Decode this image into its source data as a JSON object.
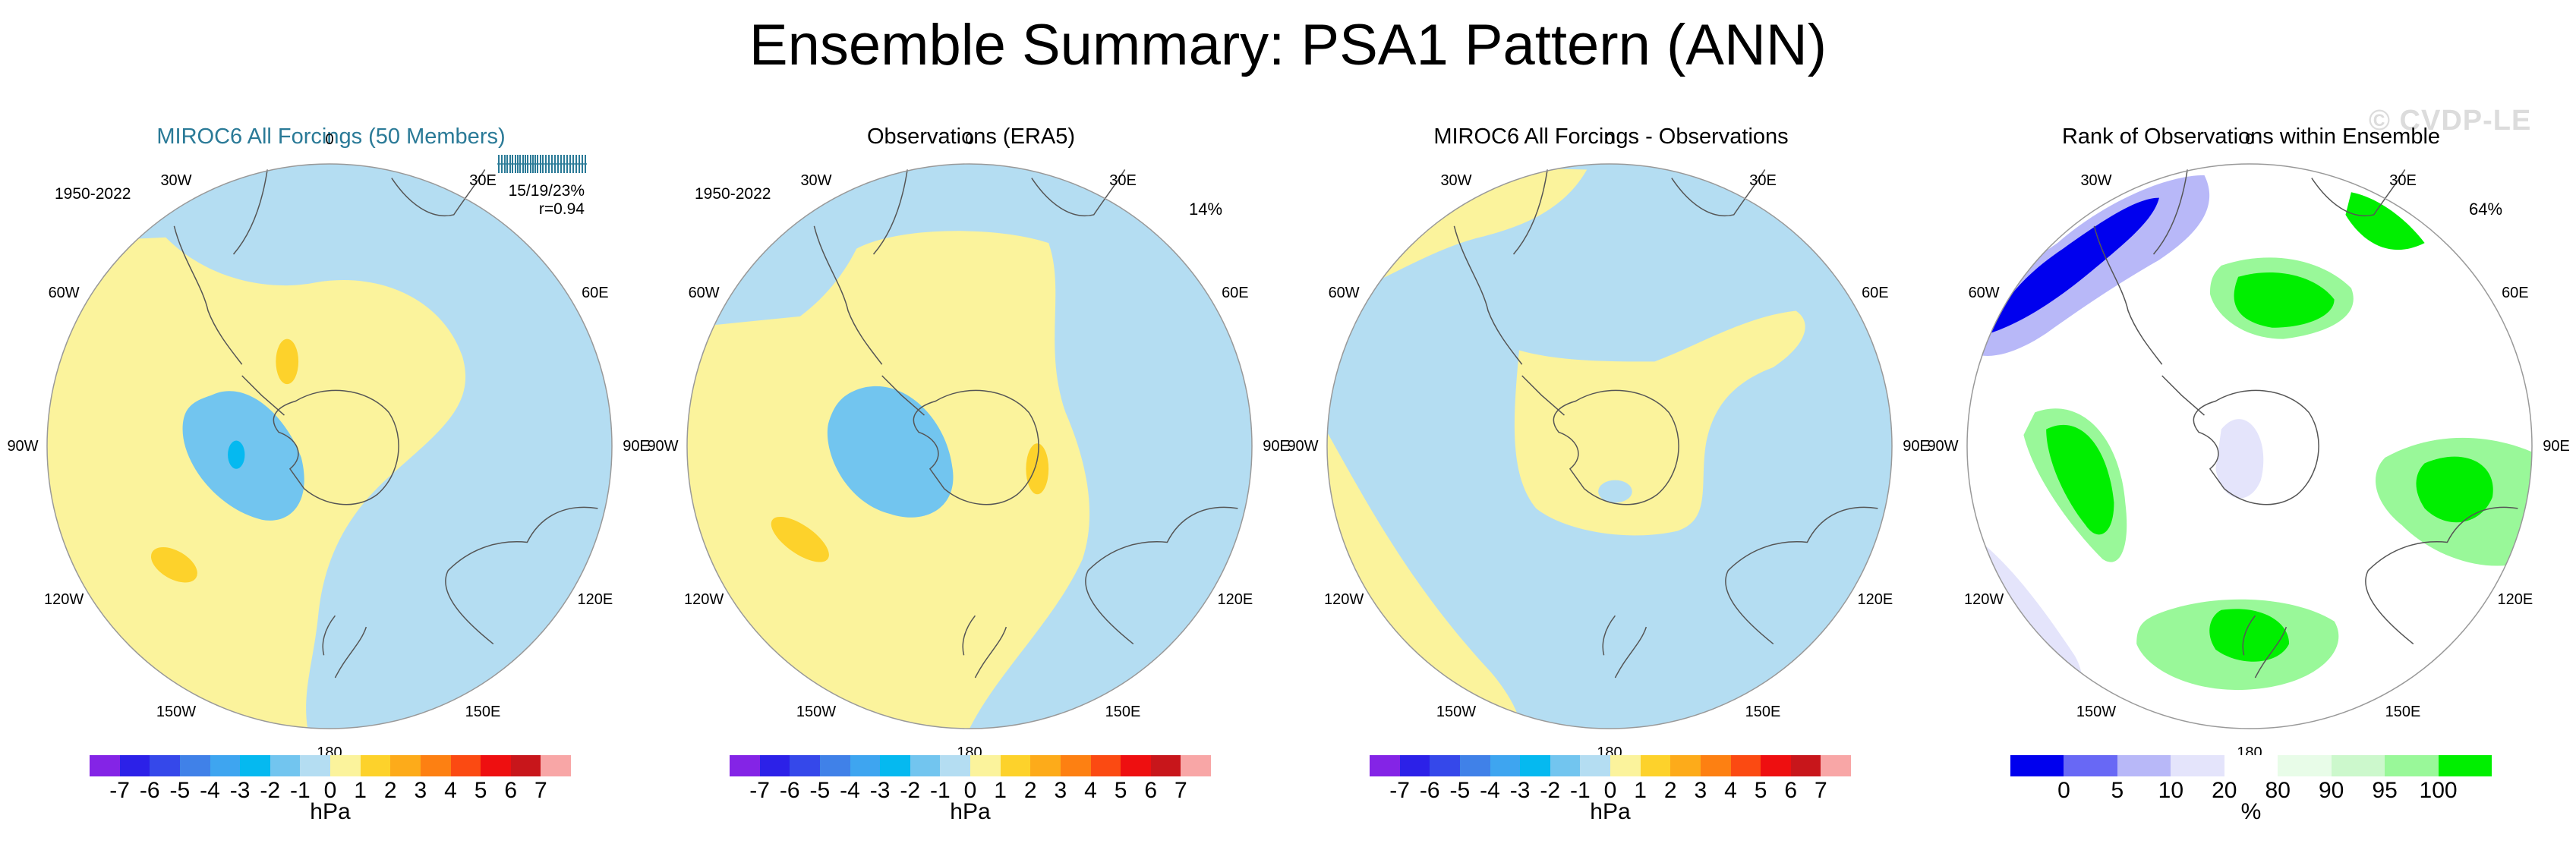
{
  "header": {
    "title": "Ensemble Summary: PSA1 Pattern (ANN)",
    "watermark": "© CVDP-LE"
  },
  "colors": {
    "blue": "#b4ddf2",
    "yellow": "#fbf39c",
    "diverging_scale": [
      "#8424e6",
      "#2c21e8",
      "#3548ea",
      "#4081e8",
      "#3ea5f0",
      "#05b9f0",
      "#72c5ef",
      "#b4ddf2",
      "#fbf39c",
      "#fdd22b",
      "#fdab1a",
      "#fd8012",
      "#fb4a12",
      "#ee0f10",
      "#c8161b",
      "#f8a6a6"
    ],
    "rank_scale": [
      "#0000ee",
      "#6868f5",
      "#b8b8f8",
      "#e4e4fb",
      "#ffffff",
      "#e8fce8",
      "#ccf8cc",
      "#99f899",
      "#00ef00"
    ]
  },
  "compass": [
    "0",
    "30E",
    "60E",
    "90E",
    "120E",
    "150E",
    "180",
    "150W",
    "120W",
    "90W",
    "60W",
    "30W"
  ],
  "chart_data": [
    {
      "type": "heatmap",
      "title": "MIROC6 All Forcings (50 Members)",
      "period": "1950-2022",
      "stats": "15/19/23%",
      "correlation": "r=0.94",
      "spread_marks": [
        2,
        6,
        10,
        13,
        17,
        20,
        24,
        27,
        30,
        34,
        37,
        40,
        44,
        47,
        50,
        53,
        57,
        60,
        64,
        68,
        72,
        76,
        80,
        84,
        88,
        92,
        96,
        100,
        104,
        108,
        112,
        116
      ],
      "unit": "hPa",
      "levels": [
        -7,
        -6,
        -5,
        -4,
        -3,
        -2,
        -1,
        0,
        1,
        2,
        3,
        4,
        5,
        6,
        7
      ],
      "tick_labels": [
        "-7",
        "-6",
        "-5",
        "-4",
        "-3",
        "-2",
        "-1",
        "0",
        "1",
        "2",
        "3",
        "4",
        "5",
        "6",
        "7"
      ]
    },
    {
      "type": "heatmap",
      "title": "Observations (ERA5)",
      "period": "1950-2022",
      "stat": "14%",
      "unit": "hPa",
      "levels": [
        -7,
        -6,
        -5,
        -4,
        -3,
        -2,
        -1,
        0,
        1,
        2,
        3,
        4,
        5,
        6,
        7
      ],
      "tick_labels": [
        "-7",
        "-6",
        "-5",
        "-4",
        "-3",
        "-2",
        "-1",
        "0",
        "1",
        "2",
        "3",
        "4",
        "5",
        "6",
        "7"
      ]
    },
    {
      "type": "heatmap",
      "title": "MIROC6 All Forcings - Observations",
      "unit": "hPa",
      "levels": [
        -7,
        -6,
        -5,
        -4,
        -3,
        -2,
        -1,
        0,
        1,
        2,
        3,
        4,
        5,
        6,
        7
      ],
      "tick_labels": [
        "-7",
        "-6",
        "-5",
        "-4",
        "-3",
        "-2",
        "-1",
        "0",
        "1",
        "2",
        "3",
        "4",
        "5",
        "6",
        "7"
      ]
    },
    {
      "type": "heatmap",
      "title": "Rank of Observations within Ensemble",
      "stat": "64%",
      "unit": "%",
      "levels": [
        0,
        5,
        10,
        20,
        80,
        90,
        95,
        100
      ],
      "tick_labels": [
        "0",
        "5",
        "10",
        "20",
        "80",
        "90",
        "95",
        "100"
      ]
    }
  ]
}
